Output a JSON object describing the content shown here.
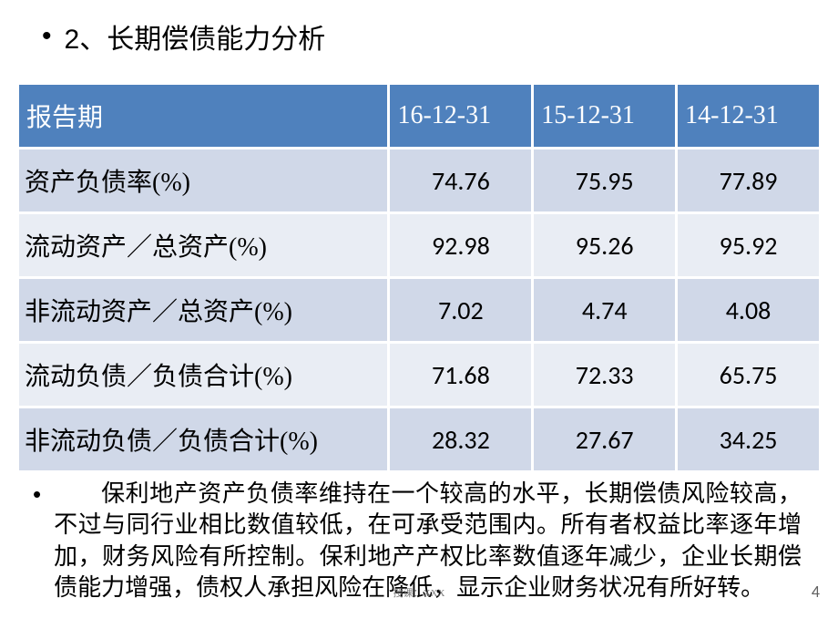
{
  "heading": {
    "bullet": "•",
    "text": "2、长期偿债能力分析"
  },
  "table": {
    "type": "table",
    "header_bg": "#4f81bd",
    "header_fg": "#ffffff",
    "row_even_bg": "#d0d8e8",
    "row_odd_bg": "#e9edf4",
    "border_color": "#ffffff",
    "columns": [
      "报告期",
      "16-12-31",
      "15-12-31",
      "14-12-31"
    ],
    "col_widths_pct": [
      46.2,
      17.9,
      17.9,
      17.9
    ],
    "header_fontsize": 28,
    "cell_fontsize": 28,
    "rows": [
      {
        "label": "资产负债率(%)",
        "vals": [
          "74.76",
          "75.95",
          "77.89"
        ]
      },
      {
        "label": "流动资产／总资产(%)",
        "vals": [
          "92.98",
          "95.26",
          "95.92"
        ]
      },
      {
        "label": "非流动资产／总资产(%)",
        "vals": [
          "7.02",
          "4.74",
          "4.08"
        ]
      },
      {
        "label": "流动负债／负债合计(%)",
        "vals": [
          "71.68",
          "72.33",
          "65.75"
        ]
      },
      {
        "label": "非流动负债／负债合计(%)",
        "vals": [
          "28.32",
          "27.67",
          "34.25"
        ]
      }
    ]
  },
  "body": {
    "bullet": "•",
    "text": "保利地产资产负债率维持在一个较高的水平，长期偿债风险较高，不过与同行业相比数值较低，在可承受范围内。所有者权益比率逐年增加，财务风险有所控制。保利地产产权比率数值逐年减少，企业长期偿债能力增强，债权人承担风险在降低，显示企业财务状况有所好转。"
  },
  "footer": {
    "mark": "授课：XXX",
    "page": "4"
  }
}
